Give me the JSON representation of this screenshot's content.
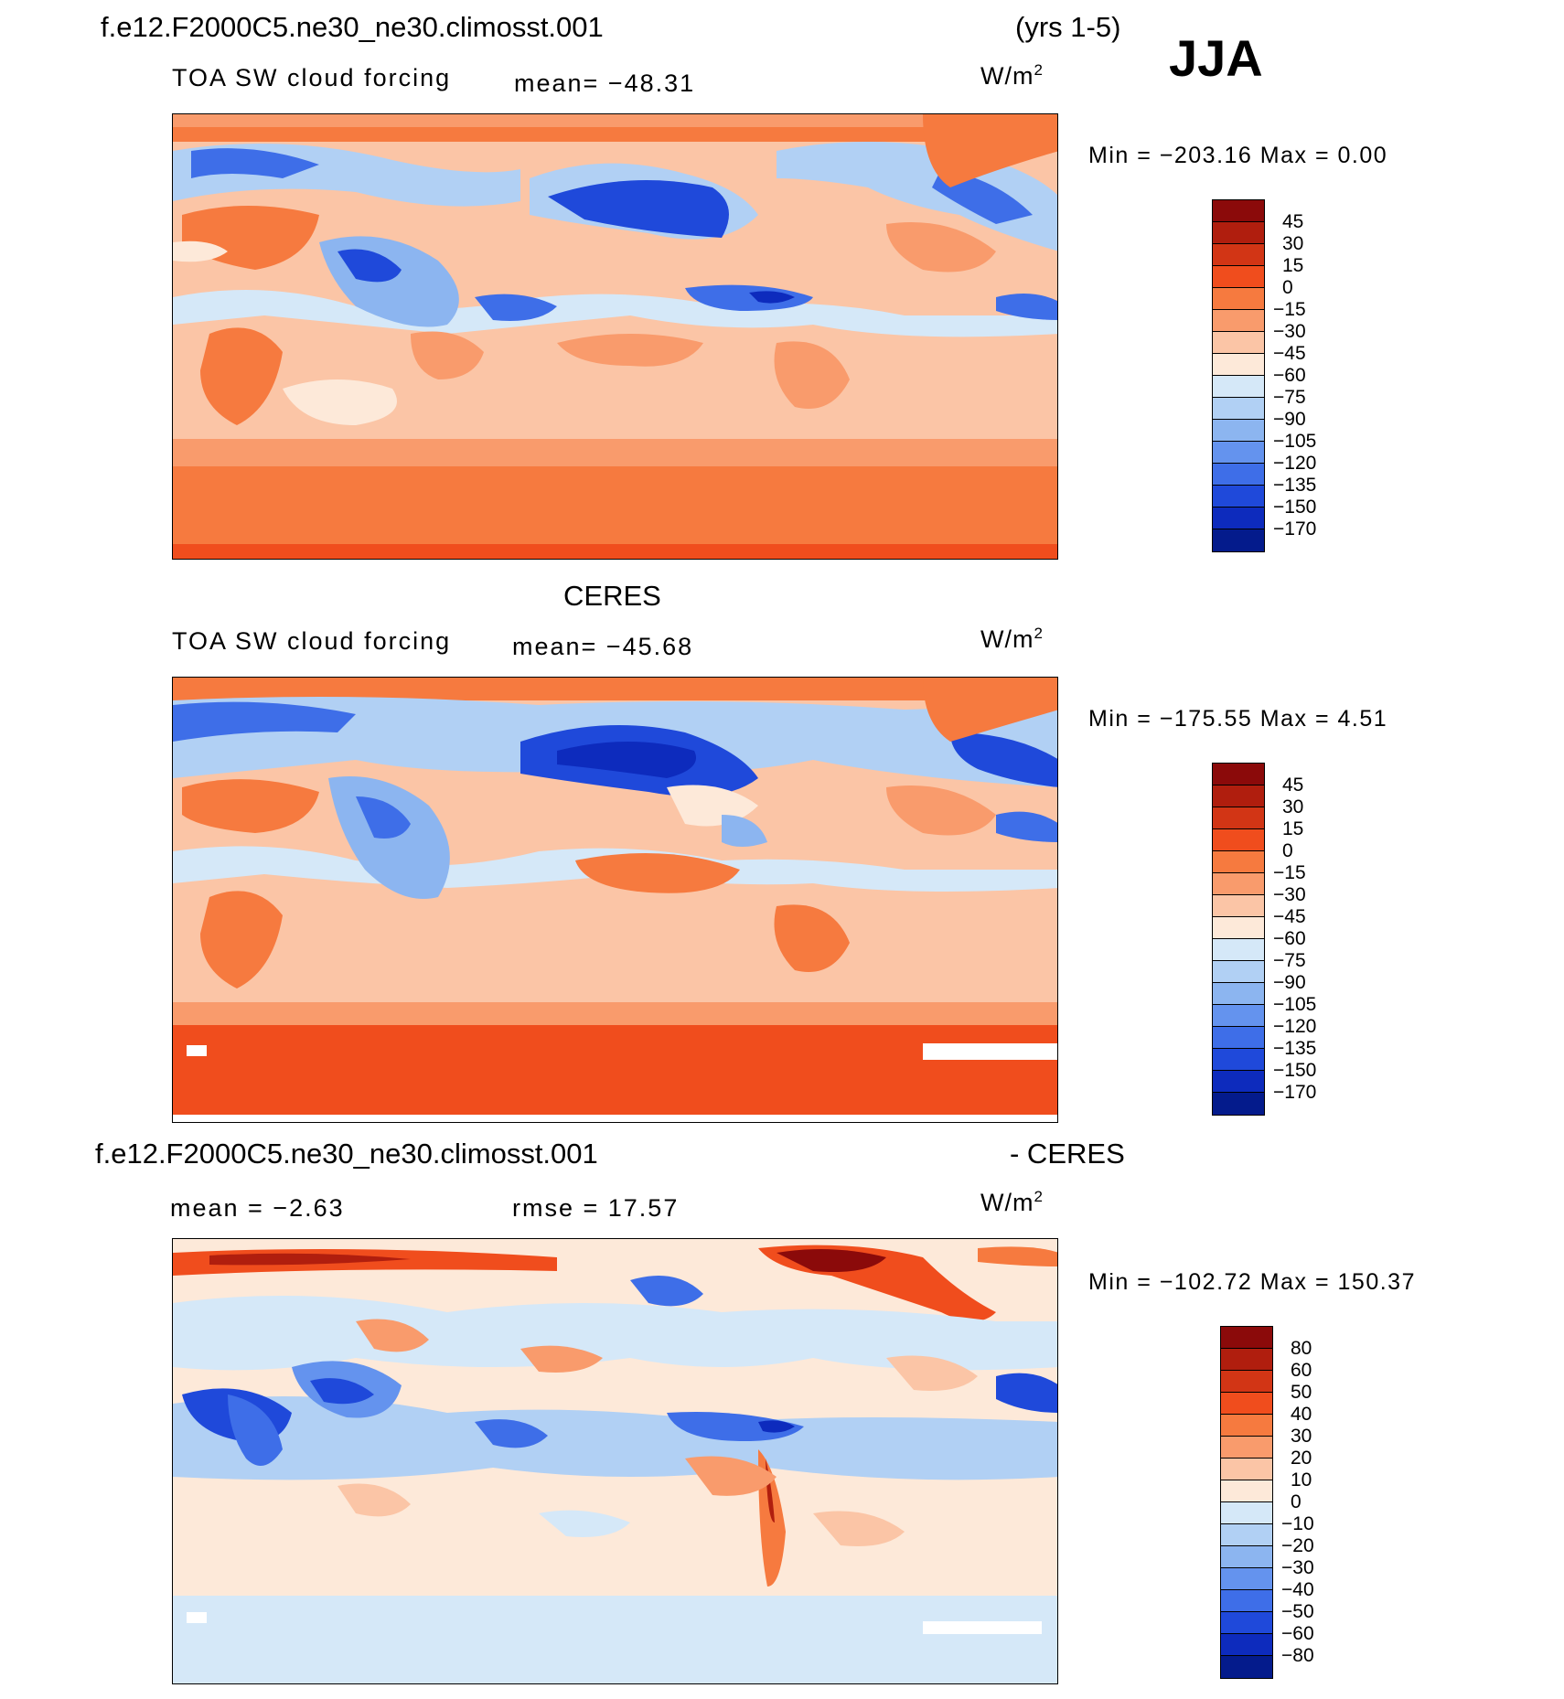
{
  "header": {
    "case_name": "f.e12.F2000C5.ne30_ne30.climosst.001",
    "years": "(yrs 1-5)",
    "season": "JJA"
  },
  "panels": [
    {
      "title": "",
      "variable": "TOA SW cloud forcing",
      "mean": "mean= −48.31",
      "units": "W/m",
      "units_exp": "2",
      "minmax": "Min = −203.16 Max =    0.00",
      "colorbar": {
        "labels": [
          "45",
          "30",
          "15",
          "0",
          "−15",
          "−30",
          "−45",
          "−60",
          "−75",
          "−90",
          "−105",
          "−120",
          "−135",
          "−150",
          "−170"
        ],
        "colors": [
          "#8b0a0a",
          "#b01e0e",
          "#d23515",
          "#f04d1d",
          "#f67a3f",
          "#f99b6c",
          "#fbc5a6",
          "#fde9d9",
          "#d5e8f8",
          "#b1d0f4",
          "#8cb5f0",
          "#6493ee",
          "#3e6ee8",
          "#1f49da",
          "#0d2bbd",
          "#041b8c"
        ]
      }
    },
    {
      "title": "CERES",
      "variable": "TOA SW cloud forcing",
      "mean": "mean= −45.68",
      "units": "W/m",
      "units_exp": "2",
      "minmax": "Min = −175.55 Max =    4.51",
      "colorbar": {
        "labels": [
          "45",
          "30",
          "15",
          "0",
          "−15",
          "−30",
          "−45",
          "−60",
          "−75",
          "−90",
          "−105",
          "−120",
          "−135",
          "−150",
          "−170"
        ],
        "colors": [
          "#8b0a0a",
          "#b01e0e",
          "#d23515",
          "#f04d1d",
          "#f67a3f",
          "#f99b6c",
          "#fbc5a6",
          "#fde9d9",
          "#d5e8f8",
          "#b1d0f4",
          "#8cb5f0",
          "#6493ee",
          "#3e6ee8",
          "#1f49da",
          "#0d2bbd",
          "#041b8c"
        ]
      }
    },
    {
      "title": "f.e12.F2000C5.ne30_ne30.climosst.001",
      "title_right": "- CERES",
      "variable": "mean =   −2.63",
      "mean": "rmse =   17.57",
      "units": "W/m",
      "units_exp": "2",
      "minmax": "Min = −102.72 Max = 150.37",
      "colorbar": {
        "labels": [
          "80",
          "60",
          "50",
          "40",
          "30",
          "20",
          "10",
          "0",
          "−10",
          "−20",
          "−30",
          "−40",
          "−50",
          "−60",
          "−80"
        ],
        "colors": [
          "#8b0a0a",
          "#b01e0e",
          "#d23515",
          "#f04d1d",
          "#f67a3f",
          "#f99b6c",
          "#fbc5a6",
          "#fde9d9",
          "#d5e8f8",
          "#b1d0f4",
          "#8cb5f0",
          "#6493ee",
          "#3e6ee8",
          "#1f49da",
          "#0d2bbd",
          "#041b8c"
        ]
      }
    }
  ],
  "colors": {
    "deep_red": "#8b0a0a",
    "orange_red": "#f04d1d",
    "light_orange": "#fbc5a6",
    "pale": "#fde9d9",
    "light_blue": "#d5e8f8",
    "mid_blue": "#6493ee",
    "deep_blue": "#041b8c"
  }
}
